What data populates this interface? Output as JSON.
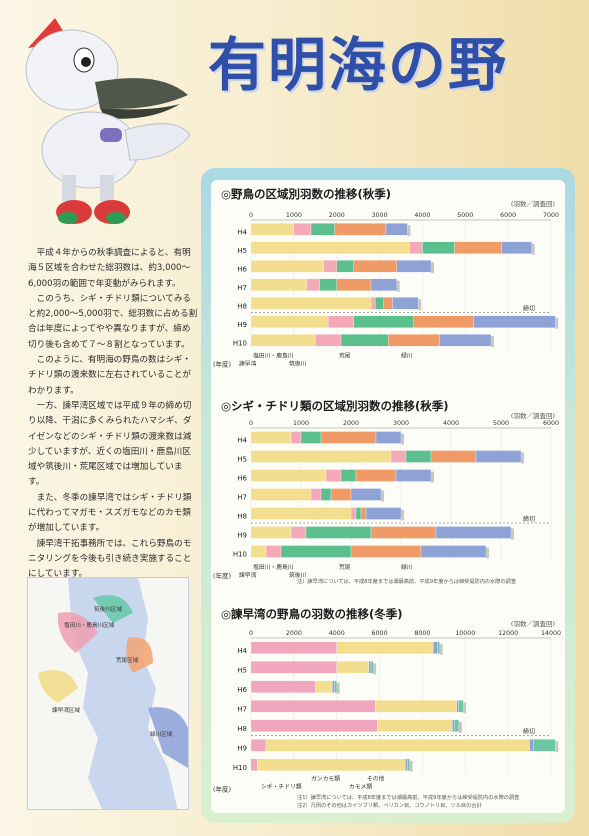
{
  "header": {
    "title": "有明海の野"
  },
  "body": {
    "p1": "平成４年からの秋季調査によると、有明海５区域を合わせた総羽数は、約3,000〜6,000羽の範囲で年変動がみられます。",
    "p2": "このうち、シギ・チドリ類についてみると約2,000〜5,000羽で、総羽数に占める割合は年度によってやや異なりますが、締め切り後も含めて７〜８割となっています。",
    "p3": "このように、有明海の野鳥の数はシギ・チドリ類の渡来数に左右されていることがわかります。",
    "p4": "一方、諫早湾区域では平成９年の締め切り以降、干潟に多くみられたハマシギ、ダイゼンなどのシギ・チドリ類の渡来数は減少していますが、近くの塩田川・鹿島川区域や筑後川・荒尾区域では増加しています。",
    "p5": "また、冬季の諫早湾ではシギ・チドリ類に代わってマガモ・スズガモなどのカモ類が増加しています。",
    "p6": "諫早湾干拓事務所では、これら野鳥のモニタリングを今後も引き続き実施することにしています。"
  },
  "map": {
    "labels": [
      "筑後川区域",
      "塩田川・鹿島川区域",
      "荒尾区域",
      "諫早湾区域",
      "緑川区域"
    ],
    "colors": {
      "sea": "#c9d7ee",
      "land": "#f7f7f4",
      "chikugo": "#66c8a8",
      "shiota": "#ef9fb2",
      "arao": "#f2a36e",
      "isahaya": "#f0dd8a",
      "midori": "#8aa0d8"
    }
  },
  "colors": {
    "isahaya": "#f3dd8f",
    "shiota": "#f4a9b9",
    "chikugo": "#5cbf8e",
    "arao": "#ef9a67",
    "midori": "#8ea2d6",
    "duck": "#f0a6bd",
    "other": "#6cc8a0"
  },
  "chart_data": [
    {
      "type": "bar",
      "title": "◎野鳥の区域別羽数の推移(秋季)",
      "unit": "(羽数／調査回)",
      "categories": [
        "H4",
        "H5",
        "H6",
        "H7",
        "H8",
        "H9",
        "H10"
      ],
      "ticks": [
        0,
        1000,
        2000,
        3000,
        4000,
        5000,
        6000,
        7000
      ],
      "xlim": [
        0,
        7000
      ],
      "ylabel": "(年度)",
      "cutoff_label": "締切",
      "series": [
        {
          "name": "諫早湾",
          "color_key": "isahaya",
          "values": [
            1000,
            3700,
            1700,
            1300,
            2800,
            1800,
            1500
          ]
        },
        {
          "name": "塩田川・鹿島川",
          "color_key": "shiota",
          "values": [
            400,
            300,
            300,
            300,
            100,
            600,
            600
          ]
        },
        {
          "name": "筑後川",
          "color_key": "chikugo",
          "values": [
            550,
            750,
            400,
            400,
            200,
            1400,
            1100
          ]
        },
        {
          "name": "荒尾",
          "color_key": "arao",
          "values": [
            1200,
            1100,
            1000,
            800,
            200,
            1400,
            1200
          ]
        },
        {
          "name": "緑川",
          "color_key": "midori",
          "values": [
            500,
            700,
            800,
            600,
            600,
            1900,
            1200
          ]
        }
      ],
      "annotations": {
        "left": [
          "塩田川・鹿島川",
          "諫早湾",
          "筑後川"
        ],
        "mid": "荒尾",
        "right": "緑川"
      }
    },
    {
      "type": "bar",
      "title": "◎シギ・チドリ類の区域別羽数の推移(秋季)",
      "unit": "(羽数／調査回)",
      "categories": [
        "H4",
        "H5",
        "H6",
        "H7",
        "H8",
        "H9",
        "H10"
      ],
      "ticks": [
        0,
        1000,
        2000,
        3000,
        4000,
        5000,
        6000
      ],
      "xlim": [
        0,
        6000
      ],
      "ylabel": "(年度)",
      "cutoff_label": "締切",
      "note": "注）諫早湾については、平成8年度までは潮最高前、平成9年度からは締受堤防内の水際の調査",
      "series": [
        {
          "name": "諫早湾",
          "color_key": "isahaya",
          "values": [
            800,
            2800,
            1500,
            1200,
            2000,
            800,
            300
          ]
        },
        {
          "name": "塩田川・鹿島川",
          "color_key": "shiota",
          "values": [
            200,
            300,
            300,
            200,
            100,
            300,
            300
          ]
        },
        {
          "name": "筑後川",
          "color_key": "chikugo",
          "values": [
            400,
            500,
            300,
            200,
            100,
            1300,
            1400
          ]
        },
        {
          "name": "荒尾",
          "color_key": "arao",
          "values": [
            1100,
            900,
            800,
            400,
            100,
            1300,
            1400
          ]
        },
        {
          "name": "緑川",
          "color_key": "midori",
          "values": [
            500,
            900,
            700,
            600,
            700,
            1500,
            1300
          ]
        }
      ],
      "annotations": {
        "left": [
          "塩田川・鹿島川",
          "諫早湾",
          "筑後川"
        ],
        "mid": "荒尾",
        "right": "緑川"
      }
    },
    {
      "type": "bar",
      "title": "◎諫早湾の野鳥の羽数の推移(冬季)",
      "unit": "(羽数／調査回)",
      "categories": [
        "H4",
        "H5",
        "H6",
        "H7",
        "H8",
        "H9",
        "H10"
      ],
      "ticks": [
        0,
        2000,
        4000,
        6000,
        8000,
        10000,
        12000,
        14000
      ],
      "xlim": [
        0,
        14000
      ],
      "ylabel": "(年度)",
      "cutoff_label": "締切",
      "note1": "注1）諫早湾については、平成8年度までは潮最高前、平成9年度からは締受堤防内の水際の調査",
      "note2": "注2）凡例のその他はカイツブリ類、ペリカン目、コウノトリ目、ツル目の合計",
      "series": [
        {
          "name": "シギ・チドリ類",
          "color_key": "duck",
          "values": [
            4000,
            4000,
            3000,
            5800,
            5900,
            700,
            300
          ]
        },
        {
          "name": "ガンカモ類",
          "color_key": "isahaya",
          "values": [
            4500,
            1500,
            800,
            3800,
            3500,
            12300,
            6900
          ]
        },
        {
          "name": "カモメ類",
          "color_key": "midori",
          "values": [
            200,
            100,
            100,
            100,
            100,
            200,
            100
          ]
        },
        {
          "name": "その他",
          "color_key": "other",
          "values": [
            100,
            100,
            100,
            200,
            200,
            1000,
            100
          ]
        }
      ],
      "annotations": {
        "left": "シギ・チドリ類",
        "mid": "ガンカモ類",
        "right1": "その他",
        "right2": "カモメ類"
      }
    }
  ]
}
